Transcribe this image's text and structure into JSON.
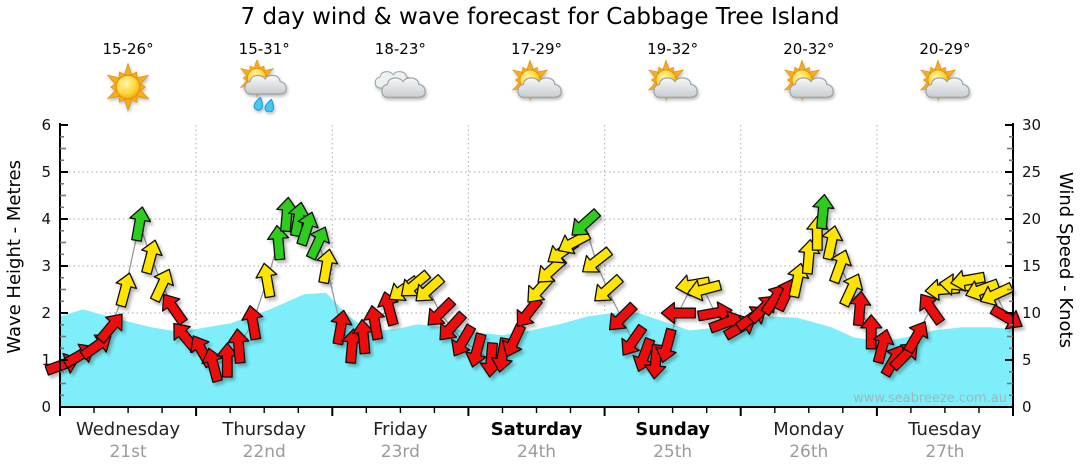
{
  "title": "7 day wind & wave forecast for Cabbage Tree Island",
  "watermark": "www.seabreeze.com.au",
  "days": [
    {
      "name": "Wednesday",
      "date": "21st",
      "temp": "15-26°",
      "icon": "sun",
      "bold": false
    },
    {
      "name": "Thursday",
      "date": "22nd",
      "temp": "15-31°",
      "icon": "sun-cloud-rain",
      "bold": false
    },
    {
      "name": "Friday",
      "date": "23rd",
      "temp": "18-23°",
      "icon": "cloud",
      "bold": false
    },
    {
      "name": "Saturday",
      "date": "24th",
      "temp": "17-29°",
      "icon": "sun-cloud",
      "bold": true
    },
    {
      "name": "Sunday",
      "date": "25th",
      "temp": "19-32°",
      "icon": "sun-cloud",
      "bold": true
    },
    {
      "name": "Monday",
      "date": "26th",
      "temp": "20-32°",
      "icon": "sun-cloud",
      "bold": false
    },
    {
      "name": "Tuesday",
      "date": "27th",
      "temp": "20-29°",
      "icon": "sun-cloud",
      "bold": false
    }
  ],
  "chart_data": {
    "type": "area+wind-arrows",
    "x_axis": {
      "unit": "hours",
      "range": [
        0,
        168
      ],
      "major_tick_hours": 24,
      "minor_tick_hours": 6
    },
    "left_axis": {
      "title": "Wave Height - Metres",
      "range": [
        0,
        6
      ],
      "ticks": [
        0,
        1,
        2,
        3,
        4,
        5,
        6
      ]
    },
    "right_axis": {
      "title": "Wind Speed - Knots",
      "range": [
        0,
        30
      ],
      "ticks": [
        0,
        5,
        10,
        15,
        20,
        25,
        30
      ]
    },
    "grid": {
      "h_lines_metres": [
        1,
        2,
        3,
        4,
        5
      ],
      "v_lines_at_day_boundaries": true,
      "style": "dotted"
    },
    "wave_height_m": {
      "name": "Wave Height (metres)",
      "points": [
        [
          0,
          1.95
        ],
        [
          4,
          2.1
        ],
        [
          10,
          1.9
        ],
        [
          16,
          1.72
        ],
        [
          21,
          1.62
        ],
        [
          24,
          1.68
        ],
        [
          30,
          1.8
        ],
        [
          37,
          2.1
        ],
        [
          43,
          2.42
        ],
        [
          47,
          2.45
        ],
        [
          51,
          1.95
        ],
        [
          55,
          1.62
        ],
        [
          60,
          1.7
        ],
        [
          63,
          1.78
        ],
        [
          69,
          1.7
        ],
        [
          72,
          1.62
        ],
        [
          78,
          1.55
        ],
        [
          83,
          1.65
        ],
        [
          88,
          1.78
        ],
        [
          93,
          1.95
        ],
        [
          99,
          2.05
        ],
        [
          102,
          2.02
        ],
        [
          107,
          1.82
        ],
        [
          111,
          1.65
        ],
        [
          115,
          1.7
        ],
        [
          120,
          1.85
        ],
        [
          125,
          1.95
        ],
        [
          130,
          1.92
        ],
        [
          136,
          1.72
        ],
        [
          140,
          1.5
        ],
        [
          145,
          1.42
        ],
        [
          149,
          1.5
        ],
        [
          154,
          1.65
        ],
        [
          159,
          1.72
        ],
        [
          164,
          1.72
        ],
        [
          168,
          1.68
        ]
      ]
    },
    "wind_arrows": {
      "name": "Wind Speed (knots) & Direction",
      "note": "each point = [hour, knots, arrow direction degrees clockwise from up, colour band]",
      "points": [
        [
          0.5,
          4.5,
          70,
          "red"
        ],
        [
          3.5,
          5.5,
          60,
          "red"
        ],
        [
          6.5,
          6.5,
          55,
          "red"
        ],
        [
          9,
          8.5,
          40,
          "red"
        ],
        [
          11.5,
          12.5,
          15,
          "yellow"
        ],
        [
          14,
          19.5,
          10,
          "green"
        ],
        [
          16,
          16,
          15,
          "yellow"
        ],
        [
          18,
          13,
          25,
          "yellow"
        ],
        [
          20,
          10.5,
          -35,
          "red"
        ],
        [
          22,
          7.5,
          -40,
          "red"
        ],
        [
          25,
          6,
          -30,
          "red"
        ],
        [
          27,
          4.5,
          -15,
          "red"
        ],
        [
          29.5,
          5,
          0,
          "red"
        ],
        [
          31.5,
          6.5,
          -5,
          "red"
        ],
        [
          34,
          9,
          -10,
          "red"
        ],
        [
          36.5,
          13.5,
          -10,
          "yellow"
        ],
        [
          38.5,
          17.5,
          -5,
          "green"
        ],
        [
          40,
          20.5,
          5,
          "green"
        ],
        [
          42,
          20,
          10,
          "green"
        ],
        [
          43.5,
          19,
          18,
          "green"
        ],
        [
          45.5,
          17.5,
          25,
          "green"
        ],
        [
          47,
          15,
          10,
          "yellow"
        ],
        [
          49.5,
          8.5,
          10,
          "red"
        ],
        [
          51.5,
          6.5,
          5,
          "red"
        ],
        [
          53.5,
          7.5,
          -5,
          "red"
        ],
        [
          55.5,
          9,
          -10,
          "red"
        ],
        [
          58,
          10.5,
          -15,
          "red"
        ],
        [
          60.5,
          12.5,
          235,
          "yellow"
        ],
        [
          62.5,
          13,
          230,
          "yellow"
        ],
        [
          65,
          12.5,
          228,
          "yellow"
        ],
        [
          67,
          10,
          225,
          "red"
        ],
        [
          69,
          8.5,
          222,
          "red"
        ],
        [
          71,
          7,
          210,
          "red"
        ],
        [
          73.5,
          6,
          195,
          "red"
        ],
        [
          76,
          5,
          185,
          "red"
        ],
        [
          78,
          5.5,
          190,
          "red"
        ],
        [
          80,
          7,
          205,
          "red"
        ],
        [
          82.5,
          10,
          218,
          "red"
        ],
        [
          84.5,
          12.5,
          222,
          "yellow"
        ],
        [
          86.5,
          14.5,
          228,
          "yellow"
        ],
        [
          88.5,
          16.5,
          235,
          "yellow"
        ],
        [
          90.5,
          17.5,
          242,
          "yellow"
        ],
        [
          92.5,
          19.5,
          228,
          "green"
        ],
        [
          94.5,
          15.5,
          232,
          "yellow"
        ],
        [
          96.5,
          12.5,
          228,
          "yellow"
        ],
        [
          99,
          9.5,
          225,
          "red"
        ],
        [
          101,
          7,
          215,
          "red"
        ],
        [
          103,
          5.5,
          200,
          "red"
        ],
        [
          105,
          4.8,
          185,
          "red"
        ],
        [
          107,
          6.5,
          195,
          "red"
        ],
        [
          109,
          10,
          270,
          "red"
        ],
        [
          111.5,
          13,
          260,
          "yellow"
        ],
        [
          113.5,
          12.5,
          255,
          "yellow"
        ],
        [
          115.5,
          10,
          80,
          "red"
        ],
        [
          117.5,
          9,
          70,
          "red"
        ],
        [
          120,
          8.5,
          60,
          "red"
        ],
        [
          122,
          9.5,
          55,
          "red"
        ],
        [
          124,
          10.5,
          45,
          "red"
        ],
        [
          126,
          11.5,
          35,
          "red"
        ],
        [
          128,
          12,
          25,
          "red"
        ],
        [
          130,
          13.5,
          12,
          "yellow"
        ],
        [
          132,
          16,
          5,
          "yellow"
        ],
        [
          133.5,
          18.5,
          0,
          "yellow"
        ],
        [
          134.5,
          20.8,
          5,
          "green"
        ],
        [
          136,
          17.5,
          12,
          "yellow"
        ],
        [
          137.5,
          15,
          20,
          "yellow"
        ],
        [
          139.5,
          12.5,
          25,
          "yellow"
        ],
        [
          141,
          10.5,
          5,
          "red"
        ],
        [
          143,
          8,
          0,
          "red"
        ],
        [
          145,
          6.5,
          15,
          "red"
        ],
        [
          147,
          5,
          30,
          "red"
        ],
        [
          149,
          5.5,
          45,
          "red"
        ],
        [
          151,
          7.5,
          30,
          "red"
        ],
        [
          153.5,
          10.5,
          -35,
          "red"
        ],
        [
          155.5,
          12.5,
          265,
          "yellow"
        ],
        [
          158,
          13,
          275,
          "yellow"
        ],
        [
          160,
          13.5,
          260,
          "yellow"
        ],
        [
          162.5,
          12.5,
          250,
          "yellow"
        ],
        [
          165,
          12,
          245,
          "yellow"
        ],
        [
          167,
          9.5,
          120,
          "red"
        ]
      ]
    },
    "colors": {
      "wave_fill": "#7EEFFA",
      "wave_edge": "#ffffff",
      "arrow_red": "#EE1111",
      "arrow_yellow": "#FFE400",
      "arrow_green": "#2ECC1E",
      "connector": "#999999",
      "grid": "#b9b9b9",
      "axis": "#000000"
    }
  }
}
